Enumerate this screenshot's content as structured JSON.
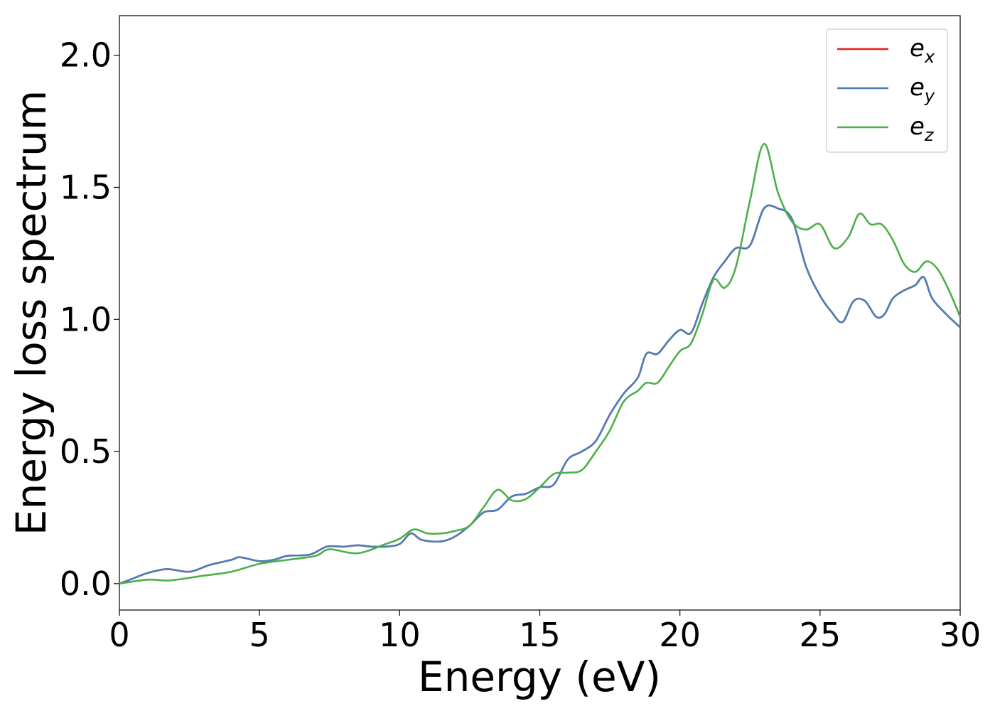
{
  "chart_data": {
    "type": "line",
    "title": "",
    "xlabel": "Energy (eV)",
    "ylabel": "Energy loss spectrum",
    "xlim": [
      0,
      30
    ],
    "ylim": [
      -0.1,
      2.15
    ],
    "xticks": [
      0,
      5,
      10,
      15,
      20,
      25,
      30
    ],
    "xtick_labels": [
      "0",
      "5",
      "10",
      "15",
      "20",
      "25",
      "30"
    ],
    "yticks": [
      0.0,
      0.5,
      1.0,
      1.5,
      2.0
    ],
    "ytick_labels": [
      "0.0",
      "0.5",
      "1.0",
      "1.5",
      "2.0"
    ],
    "grid": false,
    "legend_position": "top-right",
    "series": [
      {
        "name": "e_x",
        "label_base": "e",
        "label_sub": "x",
        "color": "#e41a1c",
        "x": [
          0,
          0.5,
          1,
          1.7,
          2.5,
          3.2,
          4,
          4.3,
          5,
          5.5,
          6,
          6.8,
          7.4,
          8,
          8.5,
          9,
          9.5,
          10,
          10.4,
          10.8,
          11.5,
          12,
          12.5,
          13,
          13.5,
          14,
          14.5,
          15,
          15.5,
          16,
          16.5,
          17,
          17.5,
          18,
          18.5,
          18.8,
          19.2,
          19.6,
          20,
          20.4,
          20.8,
          21.2,
          21.6,
          22,
          22.5,
          23,
          23.5,
          24,
          24.5,
          25,
          25.4,
          25.8,
          26.2,
          26.6,
          27,
          27.3,
          27.6,
          28,
          28.4,
          28.7,
          29,
          29.5,
          30
        ],
        "y": [
          0.0,
          0.02,
          0.04,
          0.055,
          0.045,
          0.07,
          0.09,
          0.1,
          0.085,
          0.09,
          0.105,
          0.11,
          0.14,
          0.14,
          0.145,
          0.14,
          0.14,
          0.15,
          0.19,
          0.165,
          0.16,
          0.18,
          0.22,
          0.27,
          0.28,
          0.33,
          0.34,
          0.365,
          0.375,
          0.47,
          0.5,
          0.54,
          0.64,
          0.72,
          0.78,
          0.87,
          0.87,
          0.92,
          0.96,
          0.95,
          1.06,
          1.16,
          1.22,
          1.27,
          1.28,
          1.42,
          1.42,
          1.38,
          1.2,
          1.09,
          1.03,
          0.99,
          1.07,
          1.07,
          1.01,
          1.02,
          1.08,
          1.11,
          1.13,
          1.16,
          1.08,
          1.02,
          0.97
        ]
      },
      {
        "name": "e_y",
        "label_base": "e",
        "label_sub": "y",
        "color": "#4a7fb8",
        "x": [
          0,
          0.5,
          1,
          1.7,
          2.5,
          3.2,
          4,
          4.3,
          5,
          5.5,
          6,
          6.8,
          7.4,
          8,
          8.5,
          9,
          9.5,
          10,
          10.4,
          10.8,
          11.5,
          12,
          12.5,
          13,
          13.5,
          14,
          14.5,
          15,
          15.5,
          16,
          16.5,
          17,
          17.5,
          18,
          18.5,
          18.8,
          19.2,
          19.6,
          20,
          20.4,
          20.8,
          21.2,
          21.6,
          22,
          22.5,
          23,
          23.5,
          24,
          24.5,
          25,
          25.4,
          25.8,
          26.2,
          26.6,
          27,
          27.3,
          27.6,
          28,
          28.4,
          28.7,
          29,
          29.5,
          30
        ],
        "y": [
          0.0,
          0.02,
          0.04,
          0.055,
          0.045,
          0.07,
          0.09,
          0.1,
          0.085,
          0.09,
          0.105,
          0.11,
          0.14,
          0.14,
          0.145,
          0.14,
          0.14,
          0.15,
          0.19,
          0.165,
          0.16,
          0.18,
          0.22,
          0.27,
          0.28,
          0.33,
          0.34,
          0.365,
          0.375,
          0.47,
          0.5,
          0.54,
          0.64,
          0.72,
          0.78,
          0.87,
          0.87,
          0.92,
          0.96,
          0.95,
          1.06,
          1.16,
          1.22,
          1.27,
          1.28,
          1.42,
          1.42,
          1.38,
          1.2,
          1.09,
          1.03,
          0.99,
          1.07,
          1.07,
          1.01,
          1.02,
          1.08,
          1.11,
          1.13,
          1.16,
          1.08,
          1.02,
          0.97
        ]
      },
      {
        "name": "e_z",
        "label_base": "e",
        "label_sub": "z",
        "color": "#4daf4a",
        "x": [
          0,
          1,
          1.8,
          3,
          4,
          5,
          6,
          7,
          7.5,
          8.5,
          9.5,
          10,
          10.5,
          11,
          11.5,
          12,
          12.5,
          13,
          13.5,
          14,
          14.5,
          15,
          15.5,
          16,
          16.5,
          17,
          17.5,
          18,
          18.5,
          18.8,
          19.2,
          19.6,
          20,
          20.4,
          20.8,
          21.2,
          21.6,
          22,
          22.5,
          23,
          23.5,
          24,
          24.5,
          25,
          25.5,
          26,
          26.4,
          26.8,
          27.2,
          27.6,
          28,
          28.4,
          28.8,
          29.2,
          29.6,
          30
        ],
        "y": [
          0.0,
          0.015,
          0.012,
          0.03,
          0.045,
          0.075,
          0.09,
          0.105,
          0.13,
          0.115,
          0.15,
          0.17,
          0.205,
          0.19,
          0.19,
          0.2,
          0.22,
          0.29,
          0.355,
          0.315,
          0.32,
          0.365,
          0.415,
          0.42,
          0.43,
          0.5,
          0.58,
          0.69,
          0.73,
          0.76,
          0.76,
          0.82,
          0.88,
          0.91,
          1.02,
          1.15,
          1.12,
          1.2,
          1.45,
          1.665,
          1.48,
          1.37,
          1.34,
          1.36,
          1.27,
          1.31,
          1.4,
          1.36,
          1.36,
          1.3,
          1.21,
          1.18,
          1.22,
          1.19,
          1.11,
          1.01
        ]
      }
    ]
  }
}
